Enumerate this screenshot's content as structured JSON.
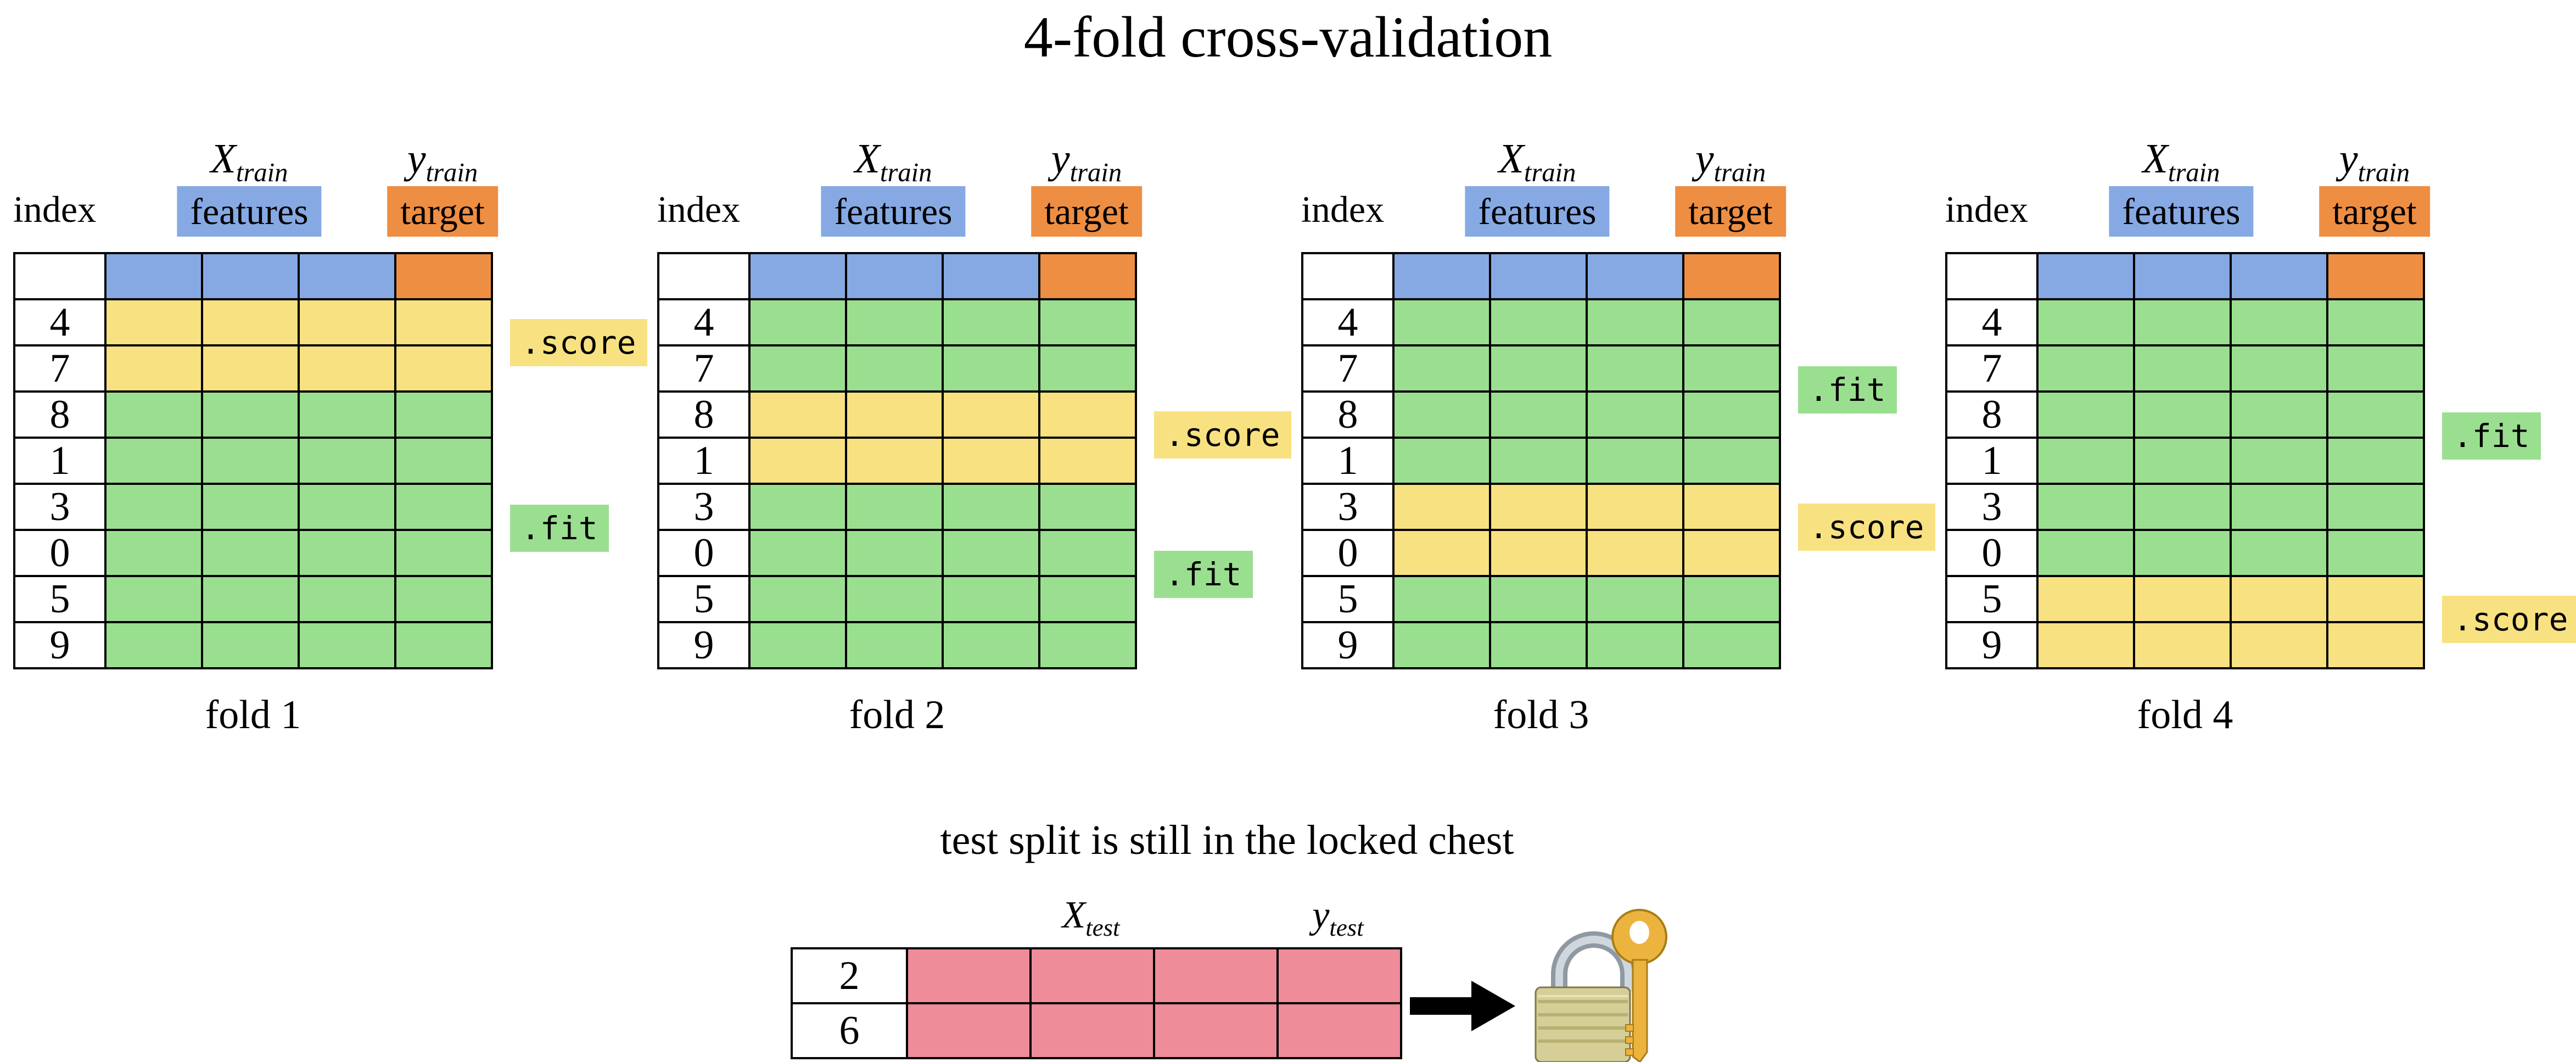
{
  "title": "4-fold cross-validation",
  "fold_header": {
    "index_label": "index",
    "xtrain": {
      "base": "X",
      "sub": "train"
    },
    "features_label": "features",
    "ytrain": {
      "base": "y",
      "sub": "train"
    },
    "target_label": "target"
  },
  "row_indices": [
    "4",
    "7",
    "8",
    "1",
    "3",
    "0",
    "5",
    "9"
  ],
  "labels": {
    "score": ".score",
    "fit": ".fit"
  },
  "folds": [
    {
      "caption": "fold 1",
      "rows": [
        "score",
        "score",
        "fit",
        "fit",
        "fit",
        "fit",
        "fit",
        "fit"
      ]
    },
    {
      "caption": "fold 2",
      "rows": [
        "fit",
        "fit",
        "score",
        "score",
        "fit",
        "fit",
        "fit",
        "fit"
      ]
    },
    {
      "caption": "fold 3",
      "rows": [
        "fit",
        "fit",
        "fit",
        "fit",
        "score",
        "score",
        "fit",
        "fit"
      ]
    },
    {
      "caption": "fold 4",
      "rows": [
        "fit",
        "fit",
        "fit",
        "fit",
        "fit",
        "fit",
        "score",
        "score"
      ]
    }
  ],
  "feature_columns": 3,
  "target_columns": 1,
  "test_section": {
    "caption": "test split is still in the locked chest",
    "xtest": {
      "base": "X",
      "sub": "test"
    },
    "ytest": {
      "base": "y",
      "sub": "test"
    },
    "row_indices": [
      "2",
      "6"
    ],
    "data_columns": 4,
    "icons": [
      "right-arrow-icon",
      "padlock-with-key-icon"
    ]
  },
  "colors": {
    "features_blue": "#86A9E4",
    "target_orange": "#EE8E43",
    "score_yellow": "#F8E180",
    "fit_green": "#9ADF90",
    "test_pink": "#EE8C99",
    "line_black": "#000000"
  }
}
